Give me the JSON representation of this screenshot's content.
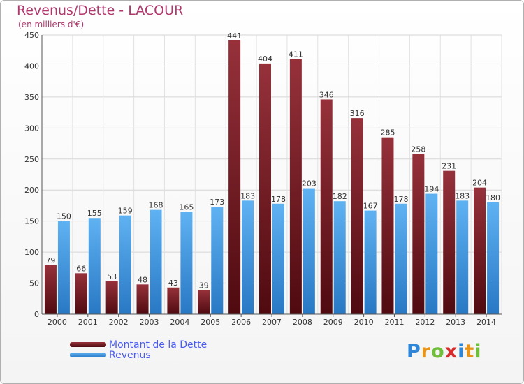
{
  "header": {
    "title": "Revenus/Dette - LACOUR",
    "subtitle": "(en milliers d'€)"
  },
  "chart_data": {
    "type": "bar",
    "categories": [
      "2000",
      "2001",
      "2002",
      "2003",
      "2004",
      "2005",
      "2006",
      "2007",
      "2008",
      "2009",
      "2010",
      "2011",
      "2012",
      "2013",
      "2014"
    ],
    "series": [
      {
        "name": "Montant de la Dette",
        "color": "#7a1d24",
        "values": [
          79,
          66,
          53,
          48,
          43,
          39,
          441,
          404,
          411,
          346,
          316,
          285,
          258,
          231,
          204
        ]
      },
      {
        "name": "Revenus",
        "color": "#3f9be6",
        "values": [
          150,
          155,
          159,
          168,
          165,
          173,
          183,
          178,
          203,
          182,
          167,
          178,
          194,
          183,
          180
        ]
      }
    ],
    "ylim": [
      0,
      450
    ],
    "yticks": [
      0,
      50,
      100,
      150,
      200,
      250,
      300,
      350,
      400,
      450
    ],
    "grid": true
  },
  "legend": {
    "items": [
      {
        "label": "Montant de la Dette",
        "color": "#7a1d24"
      },
      {
        "label": "Revenus",
        "color": "#3f9be6"
      }
    ]
  },
  "brand": {
    "letters": [
      {
        "char": "P",
        "color": "#2f86d6"
      },
      {
        "char": "r",
        "color": "#e8941a"
      },
      {
        "char": "o",
        "color": "#6fbf3a"
      },
      {
        "char": "x",
        "color": "#d92b2b"
      },
      {
        "char": "i",
        "color": "#2f86d6"
      },
      {
        "char": "t",
        "color": "#e8941a"
      },
      {
        "char": "i",
        "color": "#6fbf3a"
      }
    ]
  }
}
